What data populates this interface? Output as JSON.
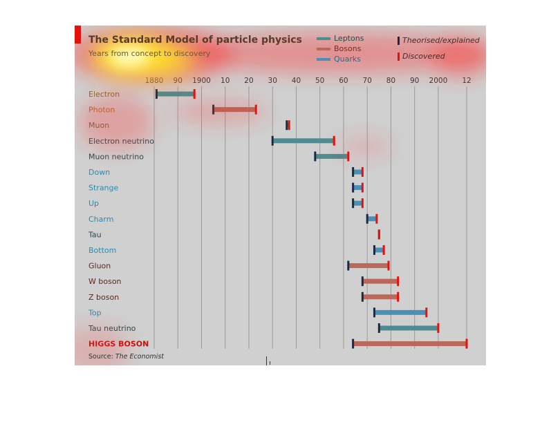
{
  "chart_data": {
    "type": "range-bar",
    "title": "The Standard Model of particle physics",
    "subtitle": "Years from concept to discovery",
    "source_label": "Source: ",
    "source_name": "The Economist",
    "x_ticks": [
      {
        "year": 1880,
        "label": "1880"
      },
      {
        "year": 1890,
        "label": "90"
      },
      {
        "year": 1900,
        "label": "1900"
      },
      {
        "year": 1910,
        "label": "10"
      },
      {
        "year": 1920,
        "label": "20"
      },
      {
        "year": 1930,
        "label": "30"
      },
      {
        "year": 1940,
        "label": "40"
      },
      {
        "year": 1950,
        "label": "50"
      },
      {
        "year": 1960,
        "label": "60"
      },
      {
        "year": 1970,
        "label": "70"
      },
      {
        "year": 1980,
        "label": "80"
      },
      {
        "year": 1990,
        "label": "90"
      },
      {
        "year": 2000,
        "label": "2000"
      },
      {
        "year": 2012,
        "label": "12"
      }
    ],
    "xlim": [
      1880,
      2012
    ],
    "grid": true,
    "legend": {
      "series": [
        {
          "name": "Leptons",
          "color": "#4f8c91"
        },
        {
          "name": "Bosons",
          "color": "#b9685a"
        },
        {
          "name": "Quarks",
          "color": "#4a8fb5"
        }
      ],
      "markers": [
        {
          "name": "Theorised/explained",
          "color": "#1a2a44"
        },
        {
          "name": "Discovered",
          "color": "#e3120b"
        }
      ],
      "placement": "top-right"
    },
    "particles": [
      {
        "name": "Electron",
        "type": "Leptons",
        "theorised": 1881,
        "discovered": 1897,
        "label_color": "#8a6a2a"
      },
      {
        "name": "Photon",
        "type": "Bosons",
        "theorised": 1905,
        "discovered": 1923,
        "label_color": "#b06a20"
      },
      {
        "name": "Muon",
        "type": "Leptons",
        "theorised": 1936,
        "discovered": 1937,
        "label_color": "#6a6a3a"
      },
      {
        "name": "Electron neutrino",
        "type": "Leptons",
        "theorised": 1930,
        "discovered": 1956,
        "label_color": "#2a4a4a"
      },
      {
        "name": "Muon neutrino",
        "type": "Leptons",
        "theorised": 1948,
        "discovered": 1962,
        "label_color": "#2a4a4a"
      },
      {
        "name": "Down",
        "type": "Quarks",
        "theorised": 1964,
        "discovered": 1968,
        "label_color": "#2a8ab0"
      },
      {
        "name": "Strange",
        "type": "Quarks",
        "theorised": 1964,
        "discovered": 1968,
        "label_color": "#2a8ab0"
      },
      {
        "name": "Up",
        "type": "Quarks",
        "theorised": 1964,
        "discovered": 1968,
        "label_color": "#2a8ab0"
      },
      {
        "name": "Charm",
        "type": "Quarks",
        "theorised": 1970,
        "discovered": 1974,
        "label_color": "#2a8ab0"
      },
      {
        "name": "Tau",
        "type": "Leptons",
        "theorised": 1975,
        "discovered": 1975,
        "label_color": "#2a4a4a"
      },
      {
        "name": "Bottom",
        "type": "Quarks",
        "theorised": 1973,
        "discovered": 1977,
        "label_color": "#2a8ab0"
      },
      {
        "name": "Gluon",
        "type": "Bosons",
        "theorised": 1962,
        "discovered": 1979,
        "label_color": "#5a2a1a"
      },
      {
        "name": "W boson",
        "type": "Bosons",
        "theorised": 1968,
        "discovered": 1983,
        "label_color": "#5a2a1a"
      },
      {
        "name": "Z boson",
        "type": "Bosons",
        "theorised": 1968,
        "discovered": 1983,
        "label_color": "#5a2a1a"
      },
      {
        "name": "Top",
        "type": "Quarks",
        "theorised": 1973,
        "discovered": 1995,
        "label_color": "#2a8ab0"
      },
      {
        "name": "Tau neutrino",
        "type": "Leptons",
        "theorised": 1975,
        "discovered": 2000,
        "label_color": "#2a4a4a"
      },
      {
        "name": "HIGGS BOSON",
        "type": "Bosons",
        "theorised": 1964,
        "discovered": 2012,
        "label_color": "#c01010"
      }
    ]
  }
}
